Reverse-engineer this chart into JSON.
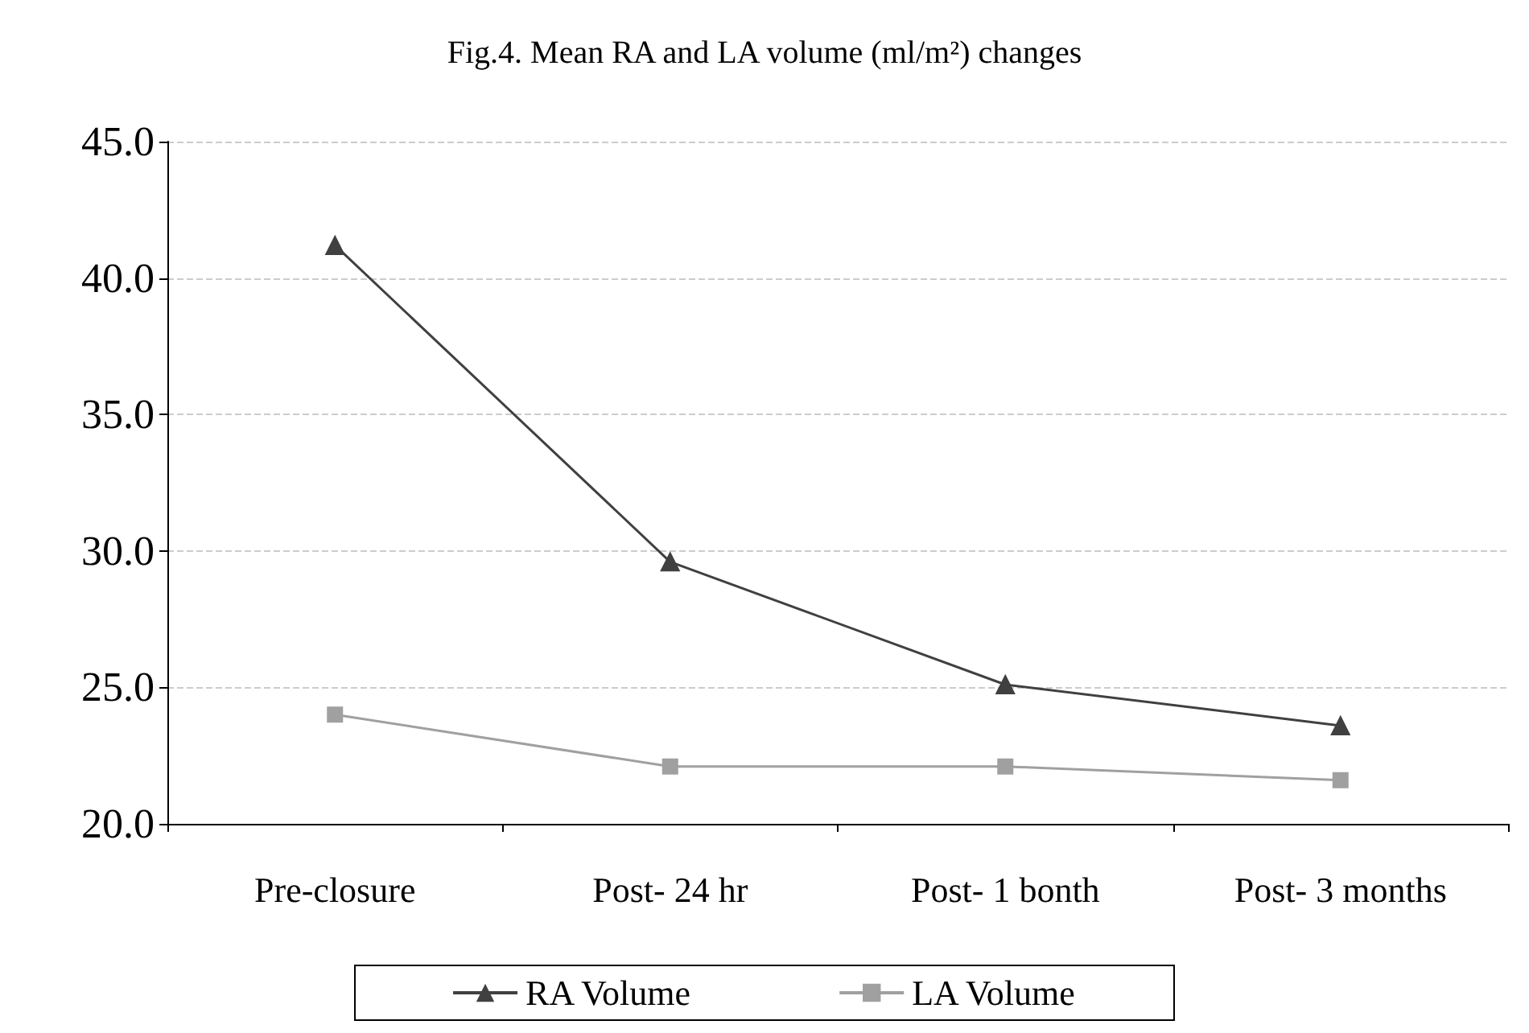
{
  "chart_data": {
    "type": "line",
    "title": "Fig.4. Mean RA and LA volume (ml/m²) changes",
    "categories": [
      "Pre-closure",
      "Post- 24 hr",
      "Post- 1 bonth",
      "Post- 3 months"
    ],
    "series": [
      {
        "name": "RA Volume",
        "color": "#404040",
        "values": [
          41.2,
          29.6,
          25.1,
          23.6
        ],
        "marker": "triangle"
      },
      {
        "name": "LA Volume",
        "color": "#a0a0a0",
        "values": [
          24.0,
          22.1,
          22.1,
          21.6
        ],
        "marker": "square"
      }
    ],
    "ylim": [
      20,
      45
    ],
    "yticks": [
      {
        "value": 20,
        "label": "20.0"
      },
      {
        "value": 25,
        "label": "25.0"
      },
      {
        "value": 30,
        "label": "30.0"
      },
      {
        "value": 35,
        "label": "35.0"
      },
      {
        "value": 40,
        "label": "40.0"
      },
      {
        "value": 45,
        "label": "45.0"
      }
    ],
    "grid": "y",
    "legend": "bottom",
    "line_style": "solid"
  }
}
